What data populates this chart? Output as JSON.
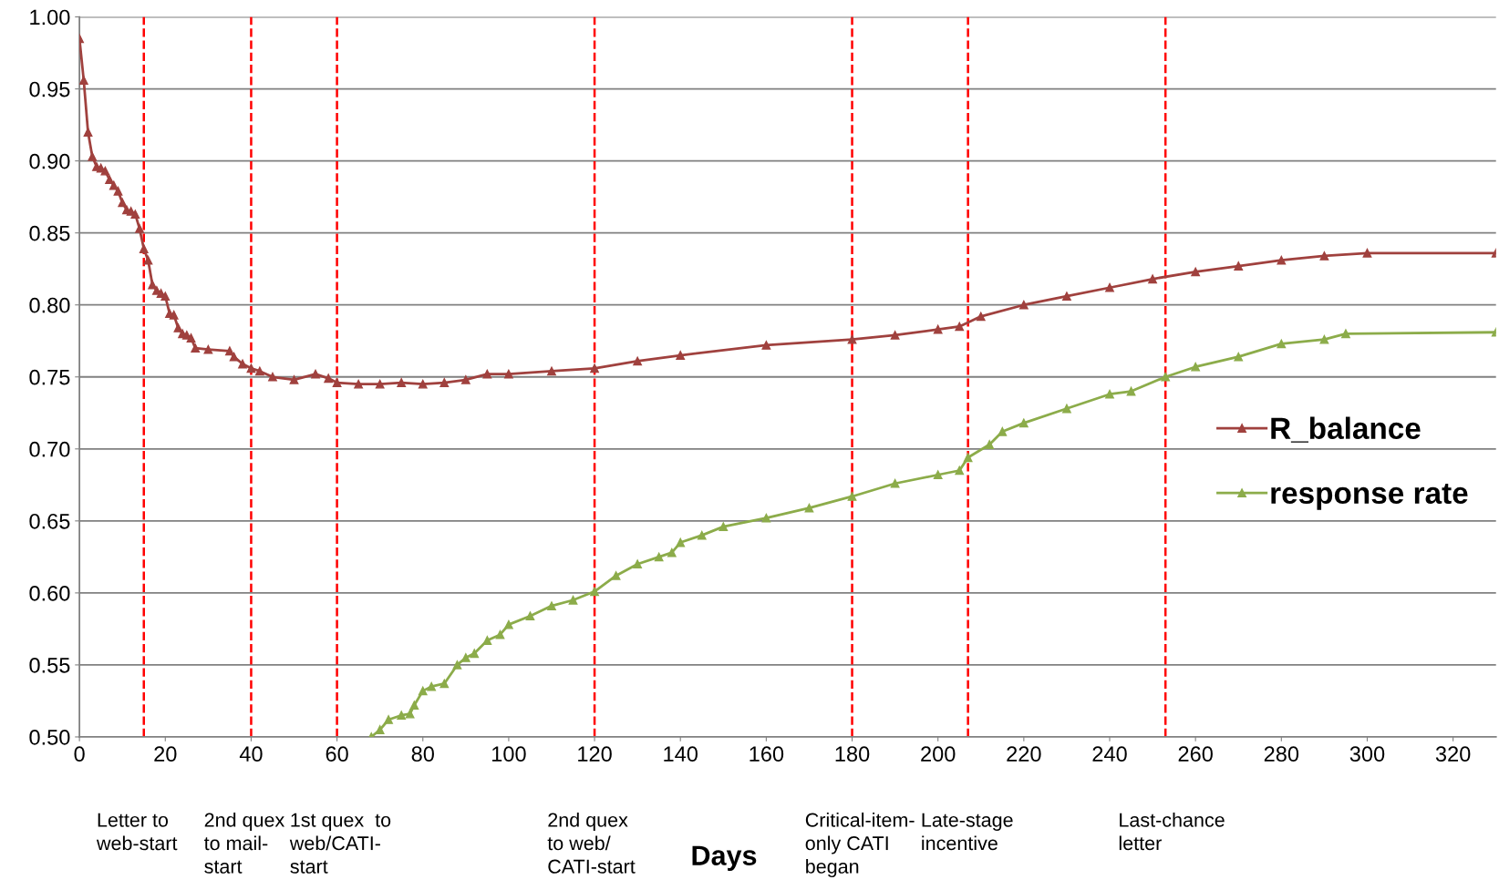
{
  "chart_data": {
    "type": "line",
    "xlabel": "Days",
    "xlim": [
      0,
      330
    ],
    "ylim": [
      0.5,
      1.0
    ],
    "xticks": [
      0,
      20,
      40,
      60,
      80,
      100,
      120,
      140,
      160,
      180,
      200,
      220,
      240,
      260,
      280,
      300,
      320
    ],
    "yticks": [
      {
        "value": 0.5,
        "label": "0.50"
      },
      {
        "value": 0.55,
        "label": "0.55"
      },
      {
        "value": 0.6,
        "label": "0.60"
      },
      {
        "value": 0.65,
        "label": "0.65"
      },
      {
        "value": 0.7,
        "label": "0.70"
      },
      {
        "value": 0.75,
        "label": "0.75"
      },
      {
        "value": 0.8,
        "label": "0.80"
      },
      {
        "value": 0.85,
        "label": "0.85"
      },
      {
        "value": 0.9,
        "label": "0.90"
      },
      {
        "value": 0.95,
        "label": "0.95"
      },
      {
        "value": 1.0,
        "label": "1.00"
      }
    ],
    "grid": "y",
    "legend": "right",
    "marker": "triangle",
    "line_style": "solid",
    "series": [
      {
        "name": "R_balance",
        "color": "#a0413e",
        "x": [
          0,
          1,
          2,
          3,
          4,
          5,
          6,
          7,
          8,
          9,
          10,
          11,
          12,
          13,
          14,
          15,
          16,
          17,
          18,
          19,
          20,
          21,
          22,
          23,
          24,
          25,
          26,
          27,
          30,
          35,
          36,
          38,
          40,
          42,
          45,
          50,
          55,
          58,
          60,
          65,
          70,
          75,
          80,
          85,
          90,
          95,
          100,
          110,
          120,
          130,
          140,
          160,
          180,
          190,
          200,
          205,
          210,
          220,
          230,
          240,
          250,
          260,
          270,
          280,
          290,
          300,
          330
        ],
        "values": [
          0.985,
          0.956,
          0.92,
          0.903,
          0.896,
          0.895,
          0.893,
          0.887,
          0.883,
          0.879,
          0.871,
          0.866,
          0.865,
          0.863,
          0.853,
          0.839,
          0.831,
          0.814,
          0.81,
          0.808,
          0.806,
          0.794,
          0.793,
          0.784,
          0.78,
          0.779,
          0.777,
          0.77,
          0.769,
          0.768,
          0.764,
          0.759,
          0.756,
          0.754,
          0.75,
          0.748,
          0.752,
          0.749,
          0.746,
          0.745,
          0.745,
          0.746,
          0.745,
          0.746,
          0.748,
          0.752,
          0.752,
          0.754,
          0.756,
          0.761,
          0.765,
          0.772,
          0.776,
          0.779,
          0.783,
          0.785,
          0.792,
          0.8,
          0.806,
          0.812,
          0.818,
          0.823,
          0.827,
          0.831,
          0.834,
          0.836,
          0.836
        ]
      },
      {
        "name": "response rate",
        "color": "#8cac4a",
        "x": [
          68,
          70,
          72,
          75,
          77,
          78,
          80,
          82,
          85,
          88,
          90,
          92,
          95,
          98,
          100,
          105,
          110,
          115,
          120,
          125,
          130,
          135,
          138,
          140,
          145,
          150,
          160,
          170,
          180,
          190,
          200,
          205,
          207,
          212,
          215,
          220,
          230,
          240,
          245,
          253,
          260,
          270,
          280,
          290,
          295,
          330
        ],
        "values": [
          0.5,
          0.505,
          0.512,
          0.515,
          0.516,
          0.522,
          0.532,
          0.535,
          0.537,
          0.55,
          0.555,
          0.558,
          0.567,
          0.571,
          0.578,
          0.584,
          0.591,
          0.595,
          0.601,
          0.612,
          0.62,
          0.625,
          0.628,
          0.635,
          0.64,
          0.646,
          0.652,
          0.659,
          0.667,
          0.676,
          0.682,
          0.685,
          0.694,
          0.703,
          0.712,
          0.718,
          0.728,
          0.738,
          0.74,
          0.75,
          0.757,
          0.764,
          0.773,
          0.776,
          0.78,
          0.781
        ]
      }
    ],
    "ref_lines": [
      {
        "axis": "x",
        "value": 15,
        "color": "#ff0000",
        "line_style": "dashed"
      },
      {
        "axis": "x",
        "value": 40,
        "color": "#ff0000",
        "line_style": "dashed"
      },
      {
        "axis": "x",
        "value": 60,
        "color": "#ff0000",
        "line_style": "dashed"
      },
      {
        "axis": "x",
        "value": 120,
        "color": "#ff0000",
        "line_style": "dashed"
      },
      {
        "axis": "x",
        "value": 180,
        "color": "#ff0000",
        "line_style": "dashed"
      },
      {
        "axis": "x",
        "value": 207,
        "color": "#ff0000",
        "line_style": "dashed"
      },
      {
        "axis": "x",
        "value": 253,
        "color": "#ff0000",
        "line_style": "dashed"
      }
    ],
    "annotations": [
      "Letter to\nweb-start",
      "2nd quex\nto mail-\nstart",
      "1st quex  to\nweb/CATI-\nstart",
      "2nd quex\nto web/\nCATI-start",
      "Critical-item-\nonly CATI\nbegan",
      "Late-stage\nincentive",
      "Last-chance\nletter"
    ]
  }
}
